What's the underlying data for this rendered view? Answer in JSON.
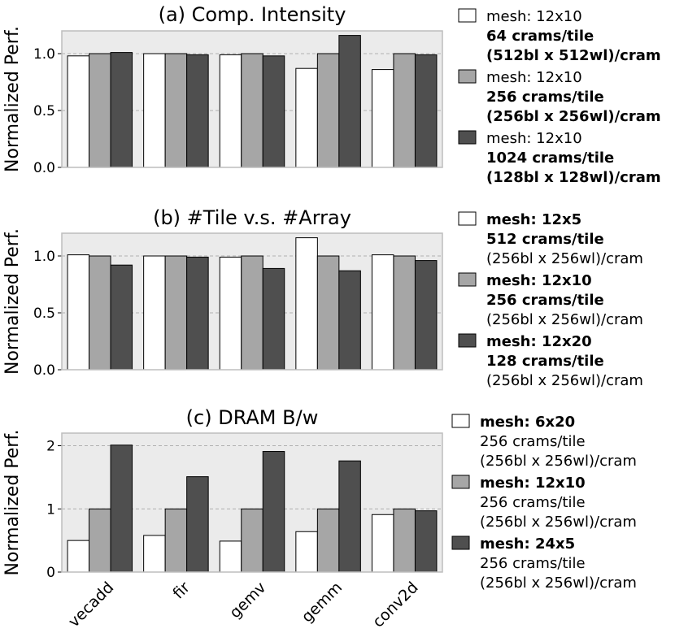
{
  "chart_data": [
    {
      "type": "bar",
      "title": "(a) Comp. Intensity",
      "ylabel": "Normalized Perf.",
      "ylim": [
        0,
        1.2
      ],
      "yticks": [
        "0.0",
        "0.5",
        "1.0"
      ],
      "ytick_values": [
        0,
        0.5,
        1.0
      ],
      "categories": [
        "vecadd",
        "fir",
        "gemv",
        "gemm",
        "conv2d"
      ],
      "series": [
        {
          "name": "mesh: 12x10 / 64 crams/tile / (512bl x 512wl)/cram",
          "color": "#ffffff",
          "values": [
            0.98,
            1.0,
            0.99,
            0.87,
            0.86
          ]
        },
        {
          "name": "mesh: 12x10 / 256 crams/tile / (256bl x 256wl)/cram",
          "color": "#a6a6a6",
          "values": [
            1.0,
            1.0,
            1.0,
            1.0,
            1.0
          ]
        },
        {
          "name": "mesh: 12x10 / 1024 crams/tile / (128bl x 128wl)/cram",
          "color": "#4f4f4f",
          "values": [
            1.01,
            0.99,
            0.98,
            1.16,
            0.99
          ]
        }
      ],
      "legend": [
        {
          "lines": [
            {
              "t": "mesh: 12x10",
              "b": false
            },
            {
              "t": "64 crams/tile",
              "b": true
            },
            {
              "t": "(512bl x 512wl)/cram",
              "b": true
            }
          ]
        },
        {
          "lines": [
            {
              "t": "mesh: 12x10",
              "b": false
            },
            {
              "t": "256 crams/tile",
              "b": true
            },
            {
              "t": "(256bl x 256wl)/cram",
              "b": true
            }
          ]
        },
        {
          "lines": [
            {
              "t": "mesh: 12x10",
              "b": false
            },
            {
              "t": "1024 crams/tile",
              "b": true
            },
            {
              "t": "(128bl x 128wl)/cram",
              "b": true
            }
          ]
        }
      ],
      "grid": true
    },
    {
      "type": "bar",
      "title": "(b) #Tile v.s. #Array",
      "ylabel": "Normalized Perf.",
      "ylim": [
        0,
        1.2
      ],
      "yticks": [
        "0.0",
        "0.5",
        "1.0"
      ],
      "ytick_values": [
        0,
        0.5,
        1.0
      ],
      "categories": [
        "vecadd",
        "fir",
        "gemv",
        "gemm",
        "conv2d"
      ],
      "series": [
        {
          "name": "mesh: 12x5 / 512 crams/tile / (256bl x 256wl)/cram",
          "color": "#ffffff",
          "values": [
            1.01,
            1.0,
            0.99,
            1.16,
            1.01
          ]
        },
        {
          "name": "mesh: 12x10 / 256 crams/tile / (256bl x 256wl)/cram",
          "color": "#a6a6a6",
          "values": [
            1.0,
            1.0,
            1.0,
            1.0,
            1.0
          ]
        },
        {
          "name": "mesh: 12x20 / 128 crams/tile / (256bl x 256wl)/cram",
          "color": "#4f4f4f",
          "values": [
            0.92,
            0.99,
            0.89,
            0.87,
            0.96
          ]
        }
      ],
      "legend": [
        {
          "lines": [
            {
              "t": "mesh: 12x5",
              "b": true
            },
            {
              "t": "512 crams/tile",
              "b": true
            },
            {
              "t": "(256bl x 256wl)/cram",
              "b": false
            }
          ]
        },
        {
          "lines": [
            {
              "t": "mesh: 12x10",
              "b": true
            },
            {
              "t": "256 crams/tile",
              "b": true
            },
            {
              "t": "(256bl x 256wl)/cram",
              "b": false
            }
          ]
        },
        {
          "lines": [
            {
              "t": "mesh: 12x20",
              "b": true
            },
            {
              "t": "128 crams/tile",
              "b": true
            },
            {
              "t": "(256bl x 256wl)/cram",
              "b": false
            }
          ]
        }
      ],
      "grid": true
    },
    {
      "type": "bar",
      "title": "(c) DRAM B/w",
      "ylabel": "Normalized Perf.",
      "ylim": [
        0,
        2.2
      ],
      "yticks": [
        "0",
        "1",
        "2"
      ],
      "ytick_values": [
        0,
        1,
        2
      ],
      "categories": [
        "vecadd",
        "fir",
        "gemv",
        "gemm",
        "conv2d"
      ],
      "series": [
        {
          "name": "mesh: 6x20 / 256 crams/tile / (256bl x 256wl)/cram",
          "color": "#ffffff",
          "values": [
            0.5,
            0.58,
            0.49,
            0.64,
            0.91
          ]
        },
        {
          "name": "mesh: 12x10 / 256 crams/tile / (256bl x 256wl)/cram",
          "color": "#a6a6a6",
          "values": [
            1.0,
            1.0,
            1.0,
            1.0,
            1.0
          ]
        },
        {
          "name": "mesh: 24x5 / 256 crams/tile / (256bl x 256wl)/cram",
          "color": "#4f4f4f",
          "values": [
            2.01,
            1.51,
            1.91,
            1.76,
            0.97
          ]
        }
      ],
      "legend": [
        {
          "lines": [
            {
              "t": "mesh: 6x20",
              "b": true
            },
            {
              "t": "256 crams/tile",
              "b": false
            },
            {
              "t": "(256bl x 256wl)/cram",
              "b": false
            }
          ]
        },
        {
          "lines": [
            {
              "t": "mesh: 12x10",
              "b": true
            },
            {
              "t": "256 crams/tile",
              "b": false
            },
            {
              "t": "(256bl x 256wl)/cram",
              "b": false
            }
          ]
        },
        {
          "lines": [
            {
              "t": "mesh: 24x5",
              "b": true
            },
            {
              "t": "256 crams/tile",
              "b": false
            },
            {
              "t": "(256bl x 256wl)/cram",
              "b": false
            }
          ]
        }
      ],
      "grid": true
    }
  ],
  "colors": {
    "plot_bg": "#ebebeb",
    "frame": "#bdbdbd",
    "grid": "#b0b0b0",
    "bar_edge": "#000000"
  }
}
